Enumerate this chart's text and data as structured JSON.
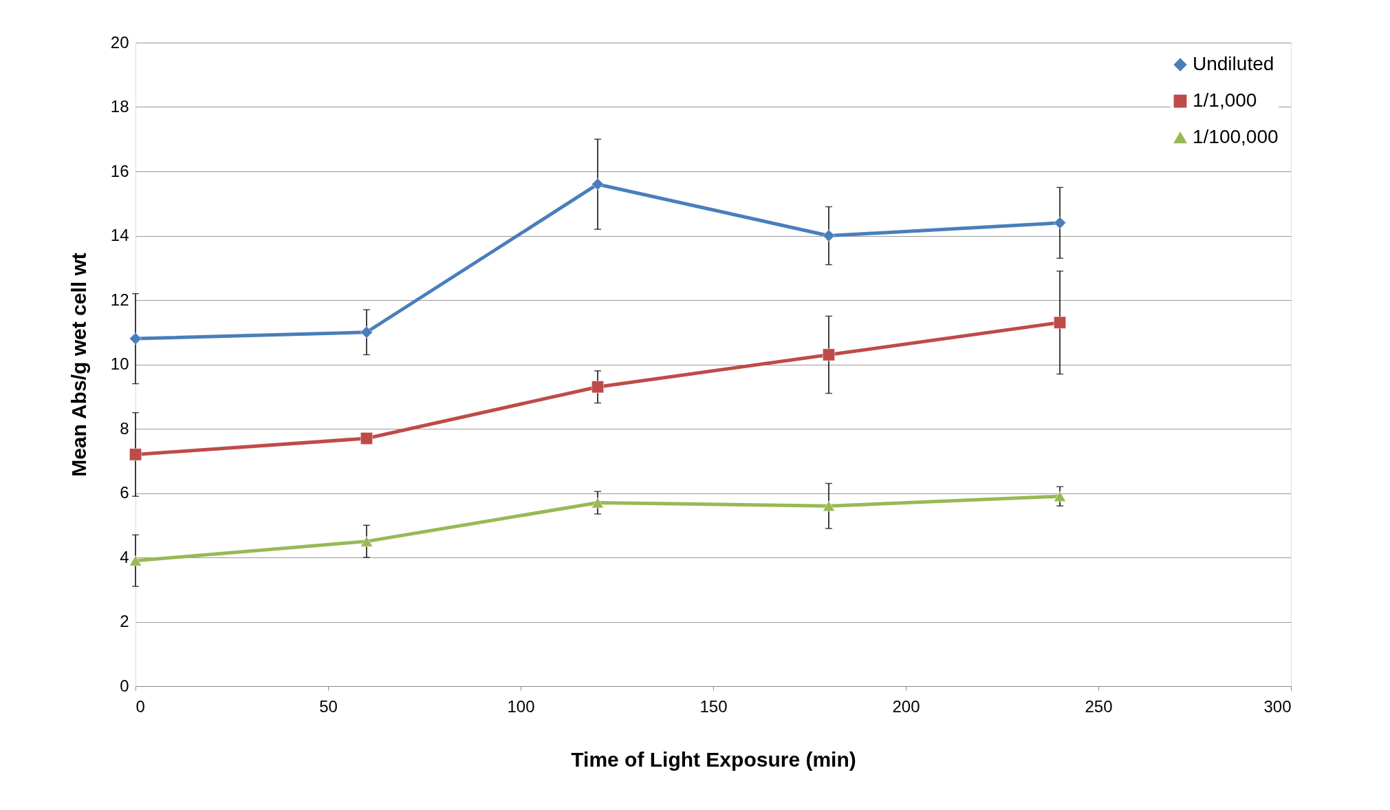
{
  "chart_data": {
    "type": "line",
    "xlabel": "Time of Light Exposure (min)",
    "ylabel": "Mean Abs/g wet cell wt",
    "x": [
      0,
      60,
      120,
      180,
      240
    ],
    "series": [
      {
        "name": "Undiluted",
        "color": "#4a7ebb",
        "marker": "diamond",
        "values": [
          10.8,
          11.0,
          15.6,
          14.0,
          14.4
        ],
        "errors": [
          1.4,
          0.7,
          1.4,
          0.9,
          1.1
        ]
      },
      {
        "name": "1/1,000",
        "color": "#be4b48",
        "marker": "square",
        "values": [
          7.2,
          7.7,
          9.3,
          10.3,
          11.3
        ],
        "errors": [
          1.3,
          null,
          0.5,
          1.2,
          1.6
        ]
      },
      {
        "name": "1/100,000",
        "color": "#98b954",
        "marker": "triangle",
        "values": [
          3.9,
          4.5,
          5.7,
          5.6,
          5.9
        ],
        "errors": [
          0.8,
          0.5,
          0.35,
          0.7,
          0.3
        ]
      }
    ],
    "xlim": [
      0,
      300
    ],
    "xticks": [
      0,
      50,
      100,
      150,
      200,
      250,
      300
    ],
    "ylim": [
      0,
      20
    ],
    "yticks": [
      0,
      2,
      4,
      6,
      8,
      10,
      12,
      14,
      16,
      18,
      20
    ],
    "grid": "y",
    "legend": "top right",
    "line_style": "solid"
  }
}
